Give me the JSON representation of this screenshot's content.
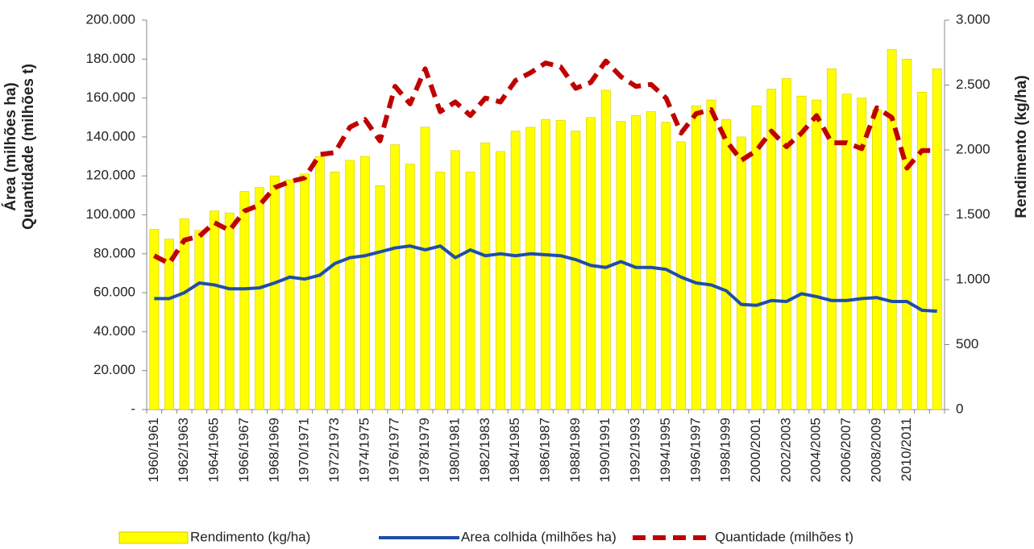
{
  "chart_data": {
    "type": "bar-line",
    "y_label": "Área (milhões ha)",
    "y_label2": "Quantidade (milhões t)",
    "y2_label": "Rendimento (kg/ha)",
    "categories": [
      "1960/1961",
      null,
      "1962/1963",
      null,
      "1964/1965",
      null,
      "1966/1967",
      null,
      "1968/1969",
      null,
      "1970/1971",
      null,
      "1972/1973",
      null,
      "1974/1975",
      null,
      "1976/1977",
      null,
      "1978/1979",
      null,
      "1980/1981",
      null,
      "1982/1983",
      null,
      "1984/1985",
      null,
      "1986/1987",
      null,
      "1988/1989",
      null,
      "1990/1991",
      null,
      "1992/1993",
      null,
      "1994/1995",
      null,
      "1996/1997",
      null,
      "1998/1999",
      null,
      "2000/2001",
      null,
      "2002/2003",
      null,
      "2004/2005",
      null,
      "2006/2007",
      null,
      "2008/2009",
      null,
      "2010/2011",
      null,
      null
    ],
    "series": [
      {
        "name": "Rendimento (kg/ha)",
        "type": "bar",
        "axis": "y2",
        "color": "#ffff00",
        "values": [
          1388,
          1313,
          1470,
          1380,
          1530,
          1515,
          1680,
          1710,
          1800,
          1770,
          1815,
          1950,
          1830,
          1920,
          1950,
          1725,
          2040,
          1890,
          2175,
          1830,
          1995,
          1830,
          2055,
          1988,
          2145,
          2175,
          2235,
          2228,
          2145,
          2250,
          2460,
          2220,
          2265,
          2295,
          2213,
          2063,
          2340,
          2385,
          2235,
          2100,
          2340,
          2468,
          2550,
          2415,
          2385,
          2625,
          2430,
          2400,
          2310,
          2775,
          2700,
          2445,
          2625
        ]
      },
      {
        "name": "Area colhida (milhões ha)",
        "type": "line",
        "color": "#1f4ea8",
        "values": [
          57000,
          57000,
          60000,
          65000,
          64000,
          62000,
          62000,
          62500,
          65000,
          68000,
          67000,
          69000,
          75000,
          78000,
          79000,
          81000,
          83000,
          84000,
          82000,
          84000,
          78000,
          82000,
          79000,
          80000,
          79000,
          80000,
          79500,
          79000,
          77000,
          74000,
          73000,
          76000,
          73000,
          73000,
          72000,
          68000,
          65000,
          64000,
          61000,
          54000,
          53500,
          56000,
          55500,
          59500,
          58000,
          56000,
          56000,
          57000,
          57500,
          55500,
          55500,
          51000,
          50500
        ]
      },
      {
        "name": "Quantidade (milhões t)",
        "type": "dashed-line",
        "color": "#c00000",
        "values": [
          79000,
          75000,
          87000,
          89000,
          96000,
          92000,
          102000,
          105000,
          114000,
          117000,
          119000,
          131000,
          132000,
          145000,
          149000,
          138000,
          166000,
          157000,
          175000,
          153000,
          158000,
          151000,
          160000,
          158000,
          169000,
          173000,
          178000,
          176000,
          165000,
          168000,
          179000,
          171000,
          166000,
          167000,
          160000,
          142000,
          152000,
          154000,
          138000,
          128000,
          133000,
          143000,
          135000,
          142000,
          151000,
          137000,
          137000,
          134000,
          155000,
          150000,
          124000,
          133000,
          133000
        ]
      }
    ],
    "ylim": [
      0,
      200000
    ],
    "yticks": [
      {
        "value": 0,
        "label": "-"
      },
      {
        "value": 20000,
        "label": "20.000"
      },
      {
        "value": 40000,
        "label": "40.000"
      },
      {
        "value": 60000,
        "label": "60.000"
      },
      {
        "value": 80000,
        "label": "80.000"
      },
      {
        "value": 100000,
        "label": "100.000"
      },
      {
        "value": 120000,
        "label": "120.000"
      },
      {
        "value": 140000,
        "label": "140.000"
      },
      {
        "value": 160000,
        "label": "160.000"
      },
      {
        "value": 180000,
        "label": "180.000"
      },
      {
        "value": 200000,
        "label": "200.000"
      }
    ],
    "y2lim": [
      0,
      3000
    ],
    "y2ticks": [
      0,
      500,
      {
        "value": 1000,
        "label": "1.000"
      },
      {
        "value": 1500,
        "label": "1.500"
      },
      {
        "value": 2000,
        "label": "2.000"
      },
      {
        "value": 2500,
        "label": "2.500"
      },
      {
        "value": 3000,
        "label": "3.000"
      }
    ]
  }
}
